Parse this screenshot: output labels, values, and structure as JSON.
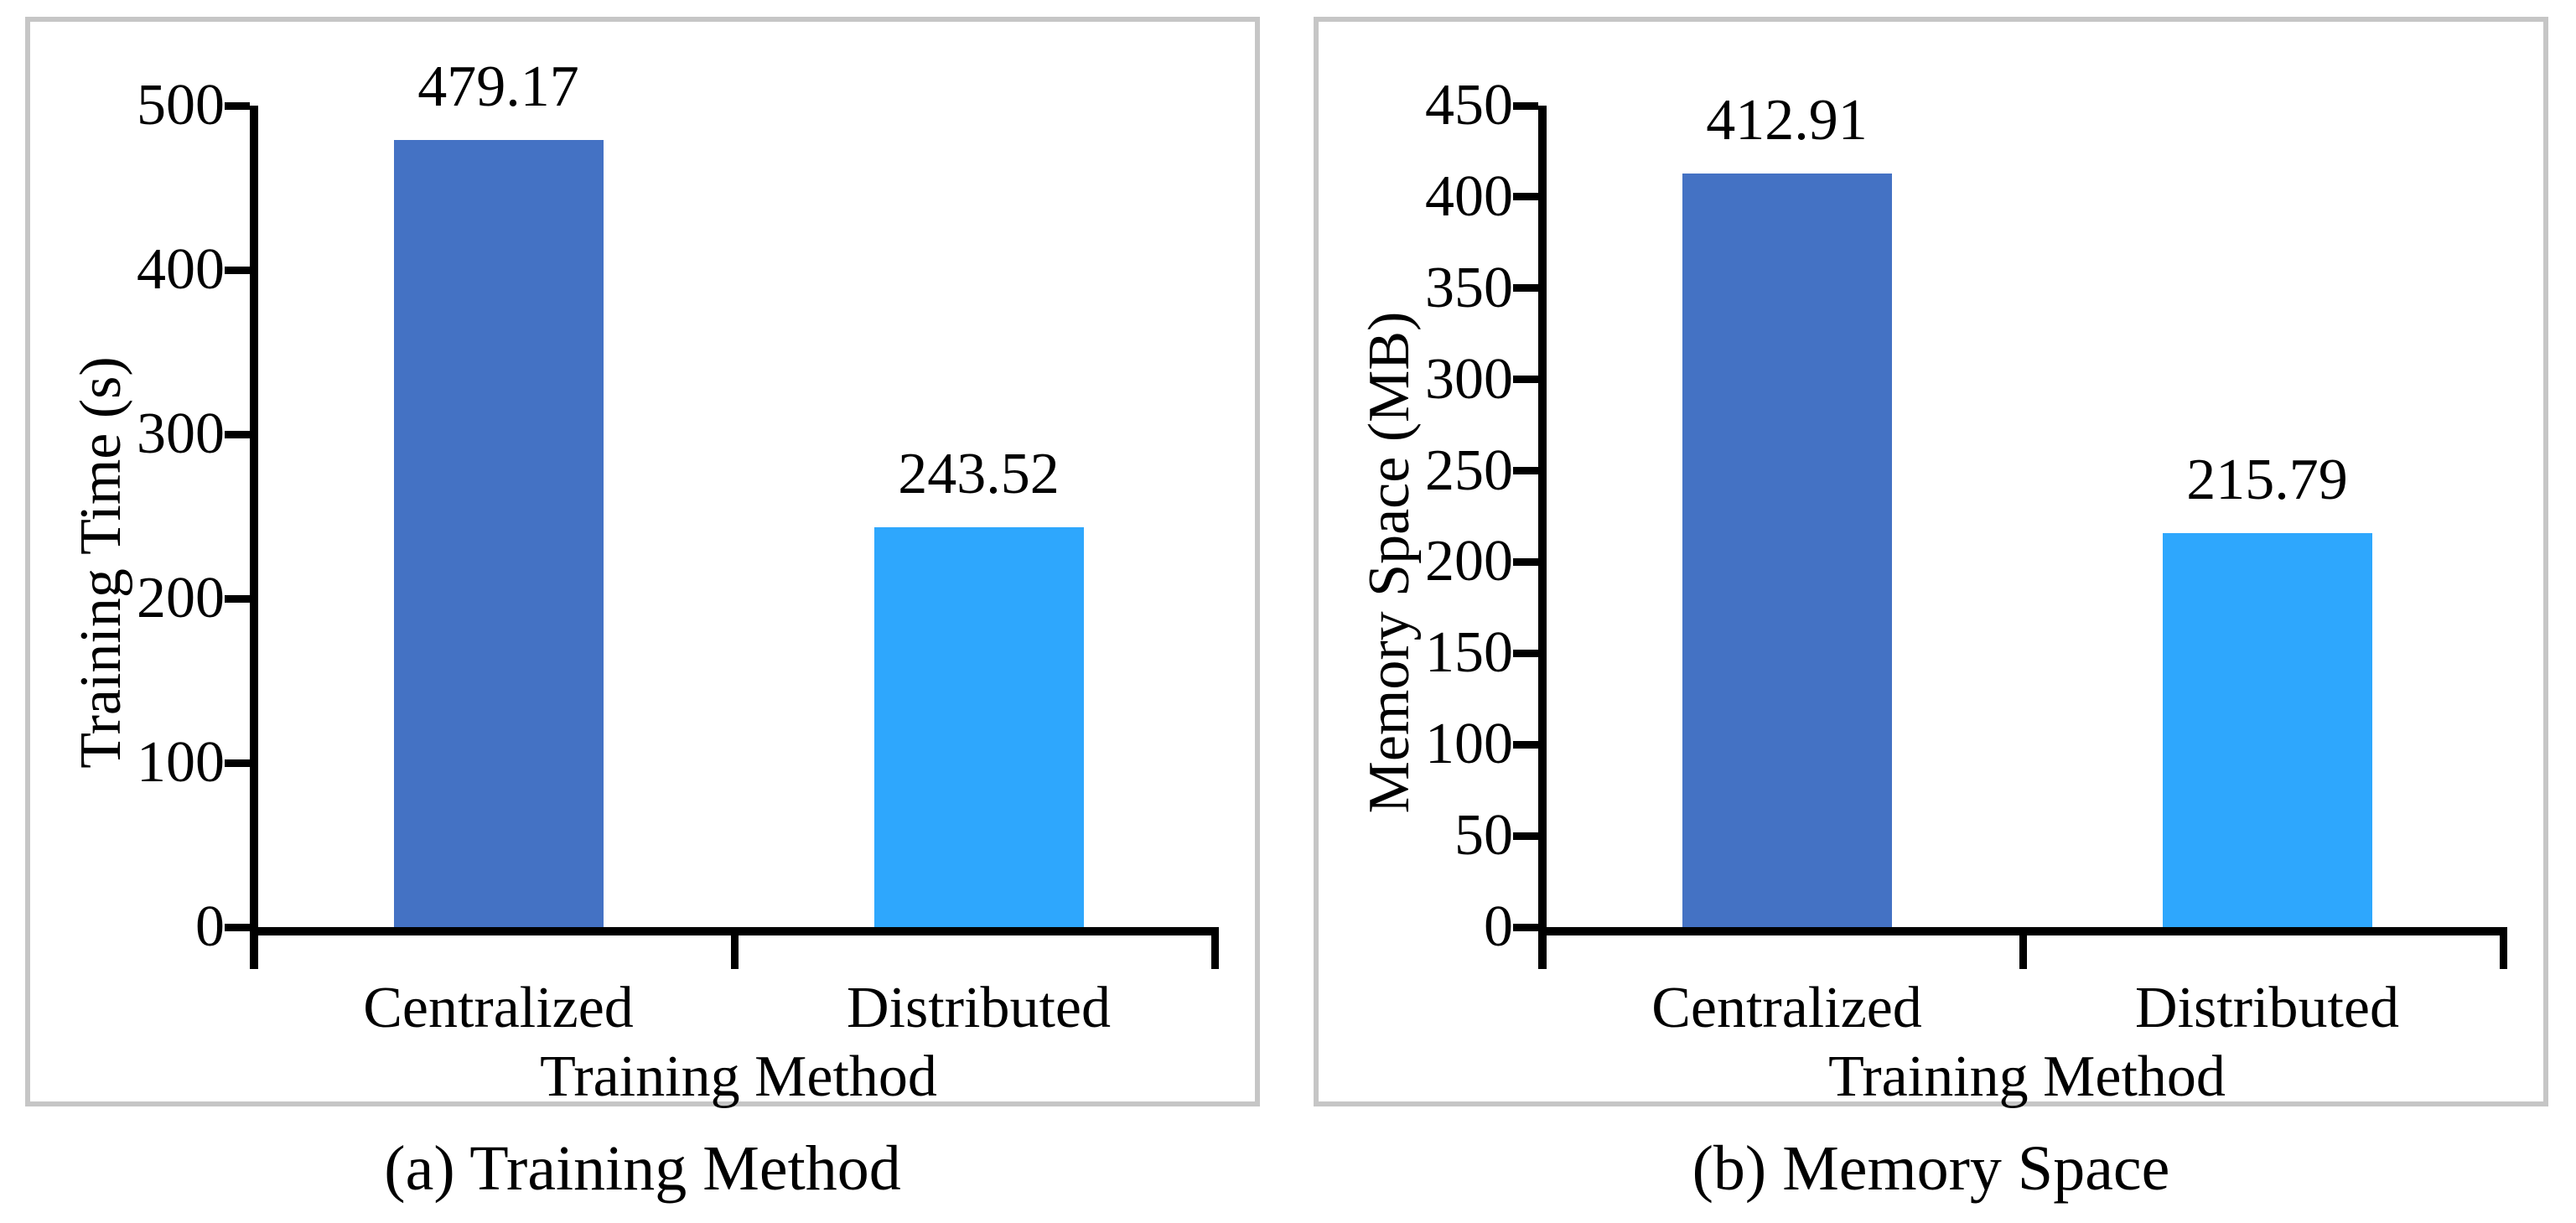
{
  "page": {
    "background": "#ffffff",
    "panel_border_color": "#c6c6c6",
    "axis_color": "#000000",
    "text_color": "#000000"
  },
  "chart_data": [
    {
      "type": "bar",
      "panel": "a",
      "caption": "(a) Training Method",
      "title": "",
      "xlabel": "Training Method",
      "ylabel": "Training Time (s)",
      "categories": [
        "Centralized",
        "Distributed"
      ],
      "values": [
        479.17,
        243.52
      ],
      "value_labels": [
        "479.17",
        "243.52"
      ],
      "bar_colors": [
        "#4472c4",
        "#2ea7fd"
      ],
      "ylim": [
        0,
        500
      ],
      "yticks": [
        0,
        100,
        200,
        300,
        400,
        500
      ],
      "grid": false,
      "legend": "none"
    },
    {
      "type": "bar",
      "panel": "b",
      "caption": "(b) Memory Space",
      "title": "",
      "xlabel": "Training Method",
      "ylabel": "Memory Space (MB)",
      "categories": [
        "Centralized",
        "Distributed"
      ],
      "values": [
        412.91,
        215.79
      ],
      "value_labels": [
        "412.91",
        "215.79"
      ],
      "bar_colors": [
        "#4472c4",
        "#2ea7fd"
      ],
      "ylim": [
        0,
        450
      ],
      "yticks": [
        0,
        50,
        100,
        150,
        200,
        250,
        300,
        350,
        400,
        450
      ],
      "grid": false,
      "legend": "none"
    }
  ]
}
